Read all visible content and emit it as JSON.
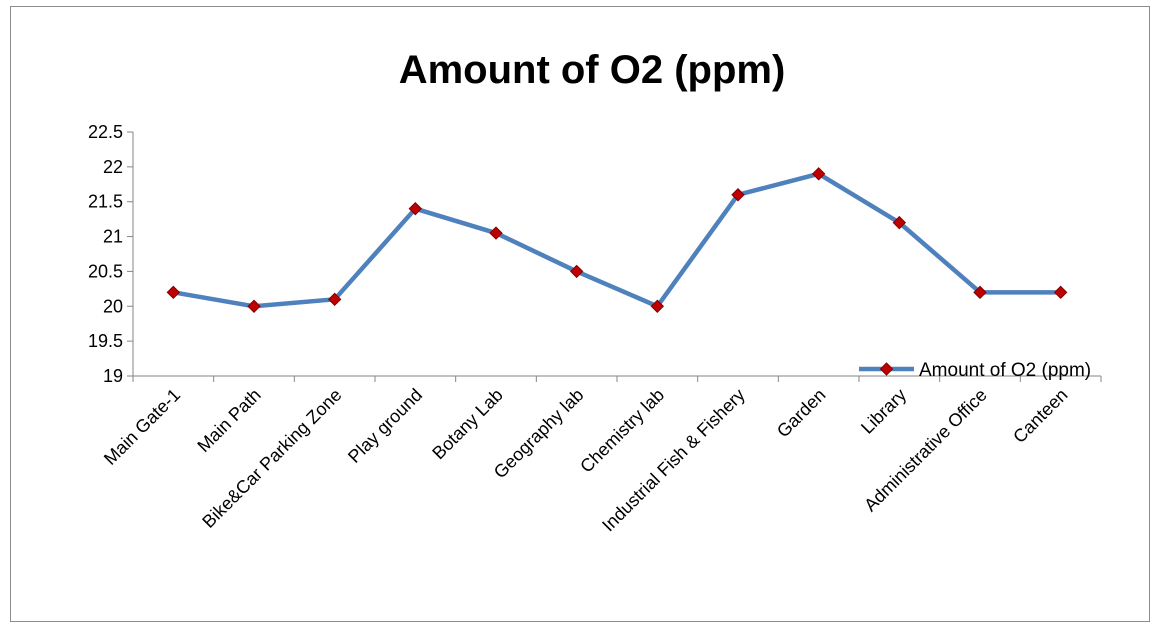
{
  "chart_data": {
    "type": "line",
    "title": "Amount of O2 (ppm)",
    "xlabel": "",
    "ylabel": "",
    "categories": [
      "Main Gate-1",
      "Main Path",
      "Bike&Car Parking Zone",
      "Play ground",
      "Botany Lab",
      "Geography lab",
      "Chemistry lab",
      "Industrial Fish & Fishery",
      "Garden",
      "Library",
      "Administrative Office",
      "Canteen"
    ],
    "series": [
      {
        "name": "Amount of O2 (ppm)",
        "values": [
          20.2,
          20.0,
          20.1,
          21.4,
          21.05,
          20.5,
          20.0,
          21.6,
          21.9,
          21.2,
          20.2,
          20.2
        ],
        "line_color": "#4f81bd",
        "marker_color": "#c00000",
        "marker": "diamond"
      }
    ],
    "yticks": [
      "19",
      "19.5",
      "20",
      "20.5",
      "21",
      "21.5",
      "22",
      "22.5"
    ],
    "ylim": [
      19,
      22.5
    ],
    "grid": false,
    "legend_position": "bottom-right"
  }
}
